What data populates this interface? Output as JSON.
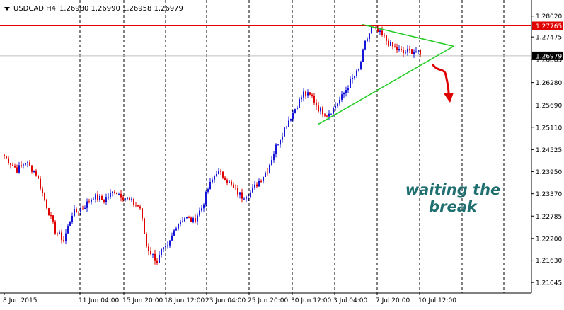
{
  "header": {
    "symbol": "USDCAD,H4",
    "ohlc": "1.26980 1.26990 1.26958 1.26979"
  },
  "annotation": {
    "line1": "waiting the",
    "line2": "break"
  },
  "colors": {
    "bull": "#1515d8",
    "bear": "#e00000",
    "triangle": "#22cc22",
    "resistance": "#e00000",
    "arrow": "#e00000",
    "annotation": "#1f6f70",
    "price_label_bg": "#000000",
    "resistance_label_bg": "#e00000"
  },
  "chart_data": {
    "type": "candlestick",
    "symbol": "USDCAD",
    "timeframe": "H4",
    "ylim": [
      1.2077,
      1.2833
    ],
    "y_ticks": [
      "1.28020",
      "1.27475",
      "1.26885",
      "1.26280",
      "1.25690",
      "1.25110",
      "1.24525",
      "1.23950",
      "1.23370",
      "1.22785",
      "1.22200",
      "1.21630",
      "1.21045"
    ],
    "x_ticks": [
      "8 Jun 2015",
      "11 Jun 04:00",
      "15 Jun 20:00",
      "18 Jun 12:00",
      "23 Jun 04:00",
      "25 Jun 20:00",
      "30 Jun 12:00",
      "3 Jul 04:00",
      "7 Jul 20:00",
      "10 Jul 12:00"
    ],
    "current_price": "1.26979",
    "resistance": {
      "price": 1.27765,
      "label": "1.27765"
    },
    "triangle": [
      [
        512,
        1.278
      ],
      [
        641,
        1.2723
      ],
      [
        450,
        1.2519
      ]
    ],
    "grid": "vertical dashed separators",
    "anchors": [
      [
        0,
        1.2435
      ],
      [
        6,
        1.24
      ],
      [
        10,
        1.242
      ],
      [
        15,
        1.239
      ],
      [
        20,
        1.2305
      ],
      [
        24,
        1.224
      ],
      [
        28,
        1.2215
      ],
      [
        32,
        1.2285
      ],
      [
        37,
        1.23
      ],
      [
        42,
        1.233
      ],
      [
        47,
        1.232
      ],
      [
        52,
        1.2345
      ],
      [
        56,
        1.233
      ],
      [
        60,
        1.2315
      ],
      [
        64,
        1.23
      ],
      [
        67,
        1.22
      ],
      [
        70,
        1.2175
      ],
      [
        72,
        1.216
      ],
      [
        74,
        1.2185
      ],
      [
        77,
        1.2195
      ],
      [
        81,
        1.2255
      ],
      [
        85,
        1.2275
      ],
      [
        89,
        1.2265
      ],
      [
        93,
        1.23
      ],
      [
        96,
        1.235
      ],
      [
        100,
        1.2395
      ],
      [
        104,
        1.238
      ],
      [
        108,
        1.235
      ],
      [
        112,
        1.233
      ],
      [
        116,
        1.234
      ],
      [
        120,
        1.237
      ],
      [
        124,
        1.24
      ],
      [
        128,
        1.246
      ],
      [
        133,
        1.252
      ],
      [
        137,
        1.256
      ],
      [
        141,
        1.26
      ],
      [
        145,
        1.259
      ],
      [
        148,
        1.256
      ],
      [
        152,
        1.2545
      ],
      [
        155,
        1.256
      ],
      [
        159,
        1.259
      ],
      [
        163,
        1.263
      ],
      [
        167,
        1.266
      ],
      [
        170,
        1.273
      ],
      [
        173,
        1.277
      ],
      [
        176,
        1.276
      ],
      [
        179,
        1.2745
      ],
      [
        182,
        1.2725
      ],
      [
        185,
        1.2715
      ],
      [
        188,
        1.2705
      ],
      [
        191,
        1.2712
      ],
      [
        194,
        1.271
      ],
      [
        196,
        1.2698
      ]
    ]
  }
}
